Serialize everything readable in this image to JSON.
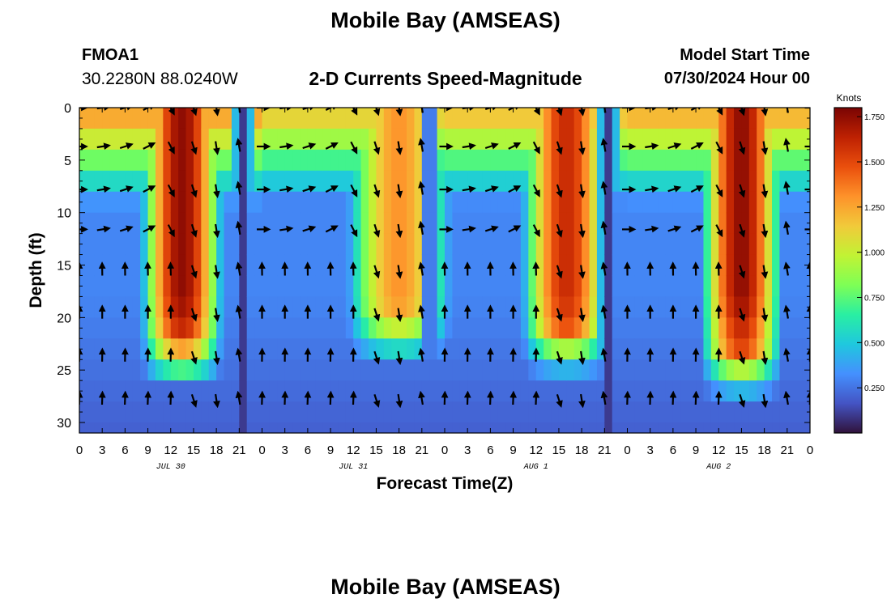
{
  "page": {
    "title_top": "Mobile Bay (AMSEAS)",
    "title_bottom": "Mobile Bay (AMSEAS)",
    "station_id": "FMOA1",
    "coordinates": "30.2280N  88.0240W",
    "product": "2-D Currents Speed-Magnitude",
    "model_start_label": "Model Start Time",
    "model_start_value": "07/30/2024 Hour 00"
  },
  "chart_data": {
    "type": "heatmap",
    "xlabel": "Forecast Time(Z)",
    "ylabel": "Depth (ft)",
    "xlim": [
      0,
      96
    ],
    "ylim": [
      0,
      31
    ],
    "y_inverted": true,
    "x_tick_values": [
      0,
      3,
      6,
      9,
      12,
      15,
      18,
      21,
      24,
      27,
      30,
      33,
      36,
      39,
      42,
      45,
      48,
      51,
      54,
      57,
      60,
      63,
      66,
      69,
      72,
      75,
      78,
      81,
      84,
      87,
      90,
      93,
      96
    ],
    "x_tick_labels": [
      "0",
      "3",
      "6",
      "9",
      "12",
      "15",
      "18",
      "21",
      "0",
      "3",
      "6",
      "9",
      "12",
      "15",
      "18",
      "21",
      "0",
      "3",
      "6",
      "9",
      "12",
      "15",
      "18",
      "21",
      "0",
      "3",
      "6",
      "9",
      "12",
      "15",
      "18",
      "21",
      "0"
    ],
    "y_tick_values": [
      0,
      5,
      10,
      15,
      20,
      25,
      30
    ],
    "y_tick_labels": [
      "0",
      "5",
      "10",
      "15",
      "20",
      "25",
      "30"
    ],
    "date_labels": [
      {
        "x": 12,
        "text": "JUL 30"
      },
      {
        "x": 36,
        "text": "JUL 31"
      },
      {
        "x": 60,
        "text": "AUG 1"
      },
      {
        "x": 84,
        "text": "AUG 2"
      }
    ],
    "colorbar": {
      "unit": "Knots",
      "min": 0.0,
      "max": 1.8,
      "ticks": [
        0.25,
        0.5,
        0.75,
        1.0,
        1.25,
        1.5,
        1.75
      ],
      "tick_labels": [
        "0.250",
        "0.500",
        "0.750",
        "1.000",
        "1.250",
        "1.500",
        "1.750"
      ],
      "colormap": [
        "#30123b",
        "#4454c4",
        "#4490fe",
        "#1fc8de",
        "#29efa2",
        "#7eff55",
        "#c1f334",
        "#f1ca3a",
        "#fe922a",
        "#ea4f0d",
        "#be2102",
        "#7a0403"
      ]
    },
    "speed_grid": {
      "x_step_hours": 1,
      "depths_ft": [
        0,
        2,
        4,
        6,
        8,
        10,
        12,
        14,
        16,
        18,
        20,
        22,
        24,
        26,
        28,
        30,
        31
      ],
      "times_h": [
        0,
        1,
        2,
        3,
        4,
        5,
        6,
        7,
        8,
        9,
        10,
        11,
        12,
        13,
        14,
        15,
        16,
        17,
        18,
        19,
        20,
        21,
        22,
        23,
        24,
        25,
        26,
        27,
        28,
        29,
        30,
        31,
        32,
        33,
        34,
        35,
        36,
        37,
        38,
        39,
        40,
        41,
        42,
        43,
        44,
        45,
        46,
        47,
        48,
        49,
        50,
        51,
        52,
        53,
        54,
        55,
        56,
        57,
        58,
        59,
        60,
        61,
        62,
        63,
        64,
        65,
        66,
        67,
        68,
        69,
        70,
        71,
        72,
        73,
        74,
        75,
        76,
        77,
        78,
        79,
        80,
        81,
        82,
        83,
        84,
        85,
        86,
        87,
        88,
        89,
        90,
        91,
        92,
        93,
        94,
        95,
        96
      ],
      "flood_windows": [
        {
          "center": 13.5,
          "half_width_h": 5.5,
          "peak": 1.75,
          "floor_depth": 22
        },
        {
          "center": 42,
          "half_width_h": 7,
          "peak": 1.3,
          "floor_depth": 20
        },
        {
          "center": 64,
          "half_width_h": 6,
          "peak": 1.6,
          "floor_depth": 21
        },
        {
          "center": 87,
          "half_width_h": 5.5,
          "peak": 1.75,
          "floor_depth": 23
        }
      ],
      "slack_times_h": [
        21.5,
        46,
        69.5
      ],
      "surface_plateaus": [
        {
          "start": 0,
          "end": 24,
          "value": 1.35
        },
        {
          "start": 24,
          "end": 48,
          "value": 1.2
        },
        {
          "start": 48,
          "end": 72,
          "value": 1.25
        },
        {
          "start": 72,
          "end": 96,
          "value": 1.3
        }
      ]
    },
    "vectors": {
      "depths_ft": [
        0,
        3.7,
        7.8,
        11.6,
        15.5,
        19.6,
        23.7,
        27.8
      ],
      "x_step_hours": 3,
      "direction_note": "degrees clockwise from up (north)"
    }
  }
}
